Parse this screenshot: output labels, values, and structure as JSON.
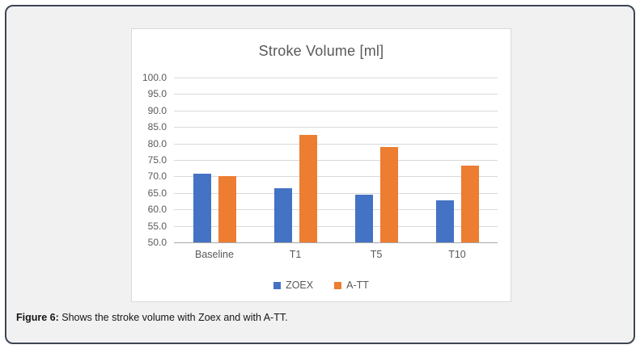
{
  "figure": {
    "caption_label": "Figure 6:",
    "caption_text": " Shows the stroke volume with Zoex and with A-TT."
  },
  "chart_data": {
    "type": "bar",
    "title": "Stroke Volume [ml]",
    "categories": [
      "Baseline",
      "T1",
      "T5",
      "T10"
    ],
    "series": [
      {
        "name": "ZOEX",
        "color": "#4472C4",
        "values": [
          70.8,
          66.4,
          64.5,
          62.7
        ]
      },
      {
        "name": "A-TT",
        "color": "#ED7D31",
        "values": [
          70.0,
          82.5,
          79.0,
          73.3
        ]
      }
    ],
    "ylim": [
      50,
      100
    ],
    "ytick_step": 5,
    "ytick_labels": [
      "100.0",
      "95.0",
      "90.0",
      "85.0",
      "80.0",
      "75.0",
      "70.0",
      "65.0",
      "60.0",
      "55.0",
      "50.0"
    ],
    "grid": true,
    "legend_position": "bottom"
  },
  "colors": {
    "gridline": "#d9d9d9",
    "axis_line": "#a6a6a6",
    "text_gray": "#595959",
    "outer_border": "#3e4653",
    "outer_fill": "#f1f1f2"
  }
}
